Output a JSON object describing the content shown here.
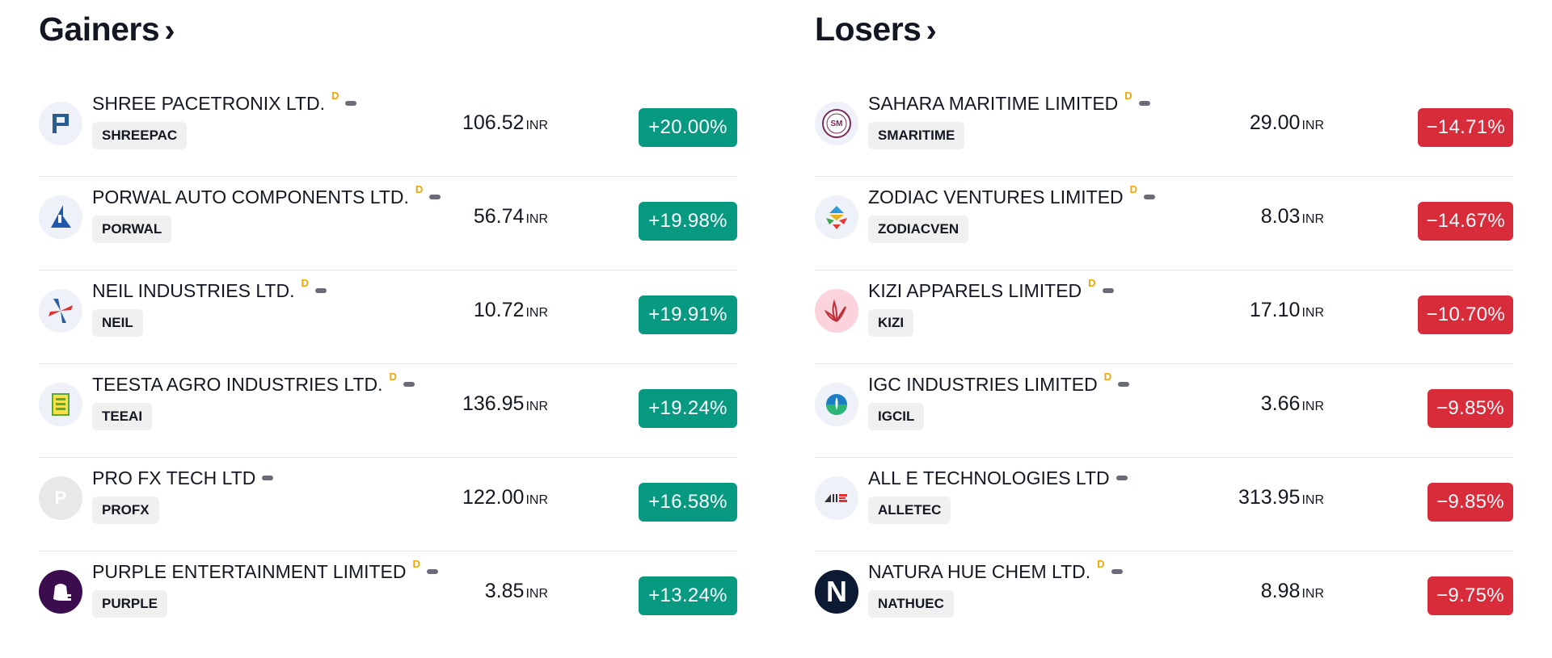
{
  "gainers": {
    "title": "Gainers",
    "rows": [
      {
        "name": "SHREE PACETRONIX LTD.",
        "flag": "D",
        "ticker": "SHREEPAC",
        "price": "106.52",
        "currency": "INR",
        "change": "+20.00%"
      },
      {
        "name": "PORWAL AUTO COMPONENTS LTD.",
        "flag": "D",
        "ticker": "PORWAL",
        "price": "56.74",
        "currency": "INR",
        "change": "+19.98%"
      },
      {
        "name": "NEIL INDUSTRIES LTD.",
        "flag": "D",
        "ticker": "NEIL",
        "price": "10.72",
        "currency": "INR",
        "change": "+19.91%"
      },
      {
        "name": "TEESTA AGRO INDUSTRIES LTD.",
        "flag": "D",
        "ticker": "TEEAI",
        "price": "136.95",
        "currency": "INR",
        "change": "+19.24%"
      },
      {
        "name": "PRO FX TECH LTD",
        "flag": "",
        "ticker": "PROFX",
        "price": "122.00",
        "currency": "INR",
        "change": "+16.58%"
      },
      {
        "name": "PURPLE ENTERTAINMENT LIMITED",
        "flag": "D",
        "ticker": "PURPLE",
        "price": "3.85",
        "currency": "INR",
        "change": "+13.24%"
      }
    ]
  },
  "losers": {
    "title": "Losers",
    "rows": [
      {
        "name": "SAHARA MARITIME LIMITED",
        "flag": "D",
        "ticker": "SMARITIME",
        "price": "29.00",
        "currency": "INR",
        "change": "−14.71%"
      },
      {
        "name": "ZODIAC VENTURES LIMITED",
        "flag": "D",
        "ticker": "ZODIACVEN",
        "price": "8.03",
        "currency": "INR",
        "change": "−14.67%"
      },
      {
        "name": "KIZI APPARELS LIMITED",
        "flag": "D",
        "ticker": "KIZI",
        "price": "17.10",
        "currency": "INR",
        "change": "−10.70%"
      },
      {
        "name": "IGC INDUSTRIES LIMITED",
        "flag": "D",
        "ticker": "IGCIL",
        "price": "3.66",
        "currency": "INR",
        "change": "−9.85%"
      },
      {
        "name": "ALL E TECHNOLOGIES LTD",
        "flag": "",
        "ticker": "ALLETEC",
        "price": "313.95",
        "currency": "INR",
        "change": "−9.85%"
      },
      {
        "name": "NATURA HUE CHEM LTD.",
        "flag": "D",
        "ticker": "NATHUEC",
        "price": "8.98",
        "currency": "INR",
        "change": "−9.75%"
      }
    ]
  },
  "logos": {
    "pro_fx_letter": "P",
    "natura_letter": "N",
    "sahara_letters": "SM"
  },
  "colors": {
    "up": "#089981",
    "down": "#d92c3b",
    "flag": "#f0a500"
  }
}
